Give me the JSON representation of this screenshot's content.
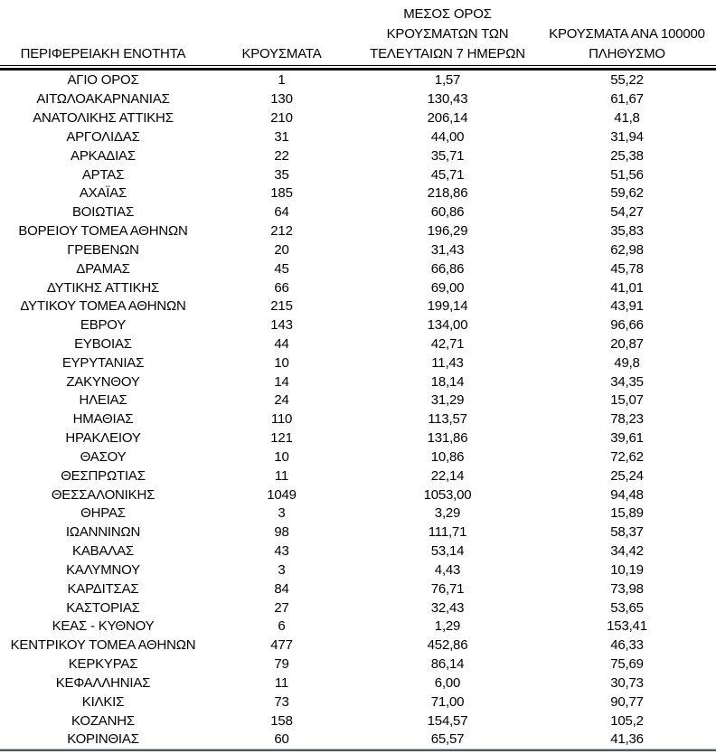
{
  "table": {
    "header": {
      "col1": "ΠΕΡΙΦΕΡΕΙΑΚΗ ΕΝΟΤΗΤΑ",
      "col2": "ΚΡΟΥΣΜΑΤΑ",
      "col3_line1": "ΜΕΣΟΣ ΟΡΟΣ",
      "col3_line2": "ΚΡΟΥΣΜΑΤΩΝ ΤΩΝ",
      "col3_line3": "ΤΕΛΕΥΤΑΙΩΝ 7 ΗΜΕΡΩΝ",
      "col4_line1": "ΚΡΟΥΣΜΑΤΑ ΑΝΑ 100000",
      "col4_line2": "ΠΛΗΘΥΣΜΟ"
    },
    "rows": [
      {
        "region": "ΑΓΙΟ ΟΡΟΣ",
        "cases": "1",
        "avg_7day": "1,57",
        "per_100k": "55,22"
      },
      {
        "region": "ΑΙΤΩΛΟΑΚΑΡΝΑΝΙΑΣ",
        "cases": "130",
        "avg_7day": "130,43",
        "per_100k": "61,67"
      },
      {
        "region": "ΑΝΑΤΟΛΙΚΗΣ ΑΤΤΙΚΗΣ",
        "cases": "210",
        "avg_7day": "206,14",
        "per_100k": "41,8"
      },
      {
        "region": "ΑΡΓΟΛΙΔΑΣ",
        "cases": "31",
        "avg_7day": "44,00",
        "per_100k": "31,94"
      },
      {
        "region": "ΑΡΚΑΔΙΑΣ",
        "cases": "22",
        "avg_7day": "35,71",
        "per_100k": "25,38"
      },
      {
        "region": "ΑΡΤΑΣ",
        "cases": "35",
        "avg_7day": "45,71",
        "per_100k": "51,56"
      },
      {
        "region": "ΑΧΑΪΑΣ",
        "cases": "185",
        "avg_7day": "218,86",
        "per_100k": "59,62"
      },
      {
        "region": "ΒΟΙΩΤΙΑΣ",
        "cases": "64",
        "avg_7day": "60,86",
        "per_100k": "54,27"
      },
      {
        "region": "ΒΟΡΕΙΟΥ ΤΟΜΕΑ ΑΘΗΝΩΝ",
        "cases": "212",
        "avg_7day": "196,29",
        "per_100k": "35,83"
      },
      {
        "region": "ΓΡΕΒΕΝΩΝ",
        "cases": "20",
        "avg_7day": "31,43",
        "per_100k": "62,98"
      },
      {
        "region": "ΔΡΑΜΑΣ",
        "cases": "45",
        "avg_7day": "66,86",
        "per_100k": "45,78"
      },
      {
        "region": "ΔΥΤΙΚΗΣ ΑΤΤΙΚΗΣ",
        "cases": "66",
        "avg_7day": "69,00",
        "per_100k": "41,01"
      },
      {
        "region": "ΔΥΤΙΚΟΥ ΤΟΜΕΑ ΑΘΗΝΩΝ",
        "cases": "215",
        "avg_7day": "199,14",
        "per_100k": "43,91"
      },
      {
        "region": "ΕΒΡΟΥ",
        "cases": "143",
        "avg_7day": "134,00",
        "per_100k": "96,66"
      },
      {
        "region": "ΕΥΒΟΙΑΣ",
        "cases": "44",
        "avg_7day": "42,71",
        "per_100k": "20,87"
      },
      {
        "region": "ΕΥΡΥΤΑΝΙΑΣ",
        "cases": "10",
        "avg_7day": "11,43",
        "per_100k": "49,8"
      },
      {
        "region": "ΖΑΚΥΝΘΟΥ",
        "cases": "14",
        "avg_7day": "18,14",
        "per_100k": "34,35"
      },
      {
        "region": "ΗΛΕΙΑΣ",
        "cases": "24",
        "avg_7day": "31,29",
        "per_100k": "15,07"
      },
      {
        "region": "ΗΜΑΘΙΑΣ",
        "cases": "110",
        "avg_7day": "113,57",
        "per_100k": "78,23"
      },
      {
        "region": "ΗΡΑΚΛΕΙΟΥ",
        "cases": "121",
        "avg_7day": "131,86",
        "per_100k": "39,61"
      },
      {
        "region": "ΘΑΣΟΥ",
        "cases": "10",
        "avg_7day": "10,86",
        "per_100k": "72,62"
      },
      {
        "region": "ΘΕΣΠΡΩΤΙΑΣ",
        "cases": "11",
        "avg_7day": "22,14",
        "per_100k": "25,24"
      },
      {
        "region": "ΘΕΣΣΑΛΟΝΙΚΗΣ",
        "cases": "1049",
        "avg_7day": "1053,00",
        "per_100k": "94,48"
      },
      {
        "region": "ΘΗΡΑΣ",
        "cases": "3",
        "avg_7day": "3,29",
        "per_100k": "15,89"
      },
      {
        "region": "ΙΩΑΝΝΙΝΩΝ",
        "cases": "98",
        "avg_7day": "111,71",
        "per_100k": "58,37"
      },
      {
        "region": "ΚΑΒΑΛΑΣ",
        "cases": "43",
        "avg_7day": "53,14",
        "per_100k": "34,42"
      },
      {
        "region": "ΚΑΛΥΜΝΟΥ",
        "cases": "3",
        "avg_7day": "4,43",
        "per_100k": "10,19"
      },
      {
        "region": "ΚΑΡΔΙΤΣΑΣ",
        "cases": "84",
        "avg_7day": "76,71",
        "per_100k": "73,98"
      },
      {
        "region": "ΚΑΣΤΟΡΙΑΣ",
        "cases": "27",
        "avg_7day": "32,43",
        "per_100k": "53,65"
      },
      {
        "region": "ΚΕΑΣ - ΚΥΘΝΟΥ",
        "cases": "6",
        "avg_7day": "1,29",
        "per_100k": "153,41"
      },
      {
        "region": "ΚΕΝΤΡΙΚΟΥ ΤΟΜΕΑ ΑΘΗΝΩΝ",
        "cases": "477",
        "avg_7day": "452,86",
        "per_100k": "46,33"
      },
      {
        "region": "ΚΕΡΚΥΡΑΣ",
        "cases": "79",
        "avg_7day": "86,14",
        "per_100k": "75,69"
      },
      {
        "region": "ΚΕΦΑΛΛΗΝΙΑΣ",
        "cases": "11",
        "avg_7day": "6,00",
        "per_100k": "30,73"
      },
      {
        "region": "ΚΙΛΚΙΣ",
        "cases": "73",
        "avg_7day": "71,00",
        "per_100k": "90,77"
      },
      {
        "region": "ΚΟΖΑΝΗΣ",
        "cases": "158",
        "avg_7day": "154,57",
        "per_100k": "105,2"
      },
      {
        "region": "ΚΟΡΙΝΘΙΑΣ",
        "cases": "60",
        "avg_7day": "65,57",
        "per_100k": "41,36"
      }
    ]
  },
  "colors": {
    "text": "#000000",
    "background": "#ffffff",
    "header_rule": "#0d0d0d",
    "bottom_rule": "#53565a"
  }
}
